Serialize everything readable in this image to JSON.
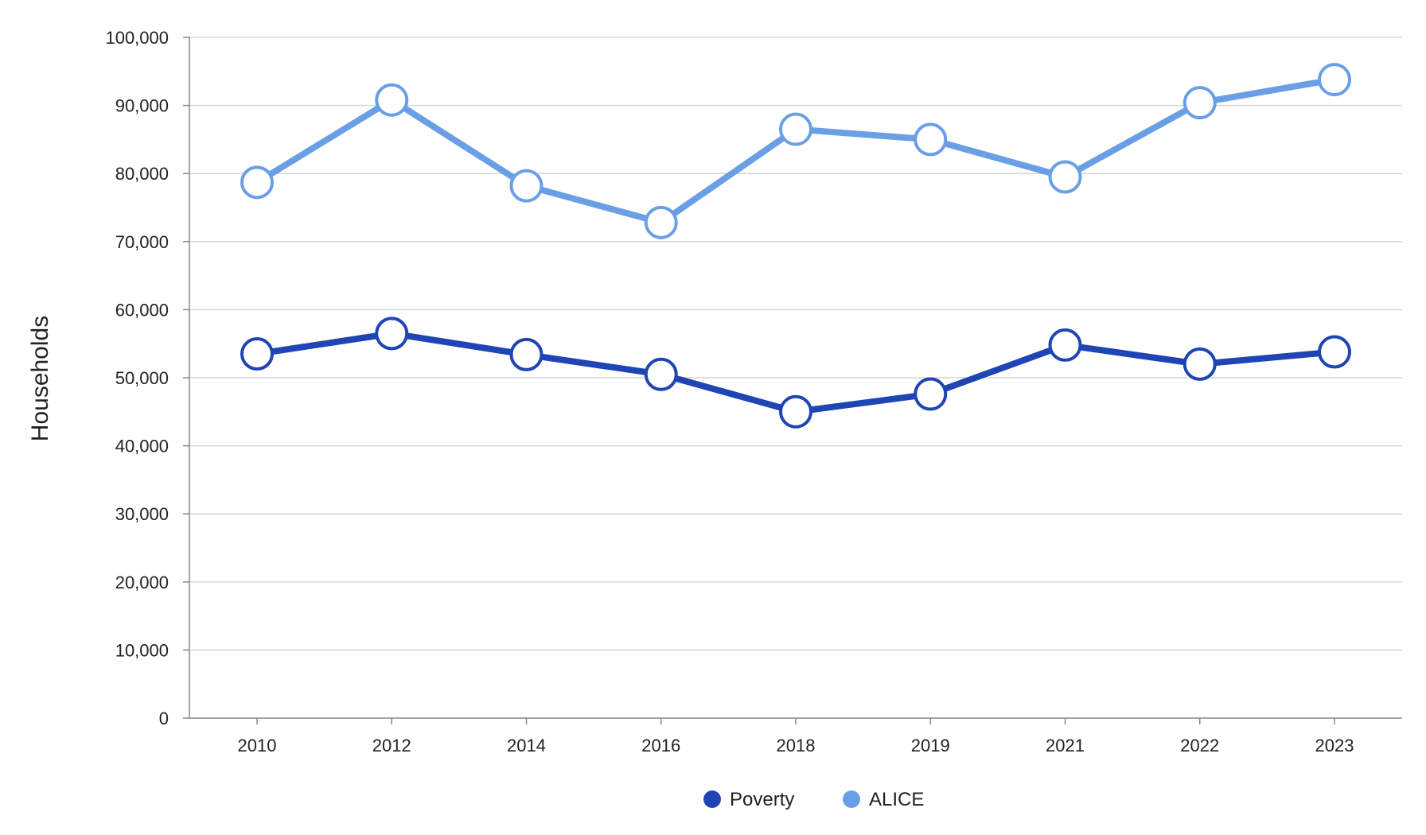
{
  "chart_data": {
    "type": "line",
    "title": "",
    "xlabel": "",
    "ylabel": "Households",
    "categories": [
      "2010",
      "2012",
      "2014",
      "2016",
      "2018",
      "2019",
      "2021",
      "2022",
      "2023"
    ],
    "ylim": [
      0,
      100000
    ],
    "yticks": [
      0,
      10000,
      20000,
      30000,
      40000,
      50000,
      60000,
      70000,
      80000,
      90000,
      100000
    ],
    "ytick_labels": [
      "0",
      "10,000",
      "20,000",
      "30,000",
      "40,000",
      "50,000",
      "60,000",
      "70,000",
      "80,000",
      "90,000",
      "100,000"
    ],
    "grid": true,
    "legend_position": "bottom",
    "series": [
      {
        "name": "Poverty",
        "color": "#1f45b4",
        "values": [
          53500,
          56500,
          53400,
          50500,
          45000,
          47600,
          54800,
          52000,
          53800
        ]
      },
      {
        "name": "ALICE",
        "color": "#6a9fe6",
        "values": [
          78700,
          90800,
          78200,
          72800,
          86500,
          85000,
          79500,
          90400,
          93800
        ]
      }
    ]
  }
}
